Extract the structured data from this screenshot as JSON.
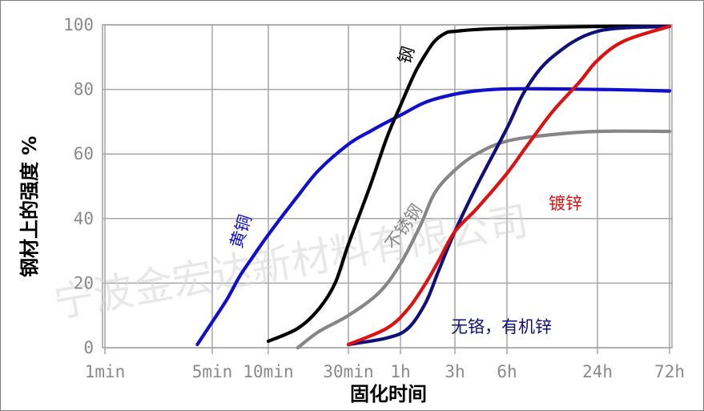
{
  "chart_data": {
    "type": "line",
    "title": "",
    "xlabel": "固化时间",
    "ylabel": "钢材上的强度 %",
    "x_ticks": [
      "1min",
      "5min",
      "10min",
      "30min",
      "1h",
      "3h",
      "6h",
      "24h",
      "72h"
    ],
    "y_ticks": [
      "0",
      "20",
      "40",
      "60",
      "80",
      "100"
    ],
    "ylim": [
      0,
      100
    ],
    "x_scale": "log",
    "grid": true,
    "watermark": "宁波金宏达新材料有限公司",
    "series": [
      {
        "name": "黄铜",
        "color": "#1010cc",
        "points": [
          [
            4,
            1
          ],
          [
            5,
            8
          ],
          [
            6,
            15
          ],
          [
            7,
            22
          ],
          [
            8,
            27
          ],
          [
            10,
            35
          ],
          [
            15,
            47
          ],
          [
            20,
            55
          ],
          [
            30,
            63
          ],
          [
            40,
            67
          ],
          [
            60,
            72
          ],
          [
            120,
            77
          ],
          [
            300,
            80
          ],
          [
            1440,
            80
          ],
          [
            4320,
            79.5
          ]
        ]
      },
      {
        "name": "钢",
        "color": "#000000",
        "points": [
          [
            10,
            2
          ],
          [
            15,
            6
          ],
          [
            20,
            12
          ],
          [
            25,
            20
          ],
          [
            30,
            32
          ],
          [
            40,
            50
          ],
          [
            50,
            65
          ],
          [
            60,
            75
          ],
          [
            80,
            85
          ],
          [
            100,
            91
          ],
          [
            120,
            95
          ],
          [
            150,
            97.5
          ],
          [
            180,
            98
          ],
          [
            300,
            98.8
          ],
          [
            1440,
            99.5
          ],
          [
            4320,
            99.5
          ]
        ]
      },
      {
        "name": "不锈钢",
        "color": "#868686",
        "points": [
          [
            15,
            0
          ],
          [
            20,
            5
          ],
          [
            30,
            10
          ],
          [
            45,
            17
          ],
          [
            60,
            26
          ],
          [
            90,
            38
          ],
          [
            120,
            48
          ],
          [
            180,
            55
          ],
          [
            240,
            60
          ],
          [
            360,
            64
          ],
          [
            720,
            66
          ],
          [
            1440,
            67
          ],
          [
            4320,
            67
          ]
        ]
      },
      {
        "name": "无铬，有机锌",
        "color": "#10107a",
        "points": [
          [
            30,
            1
          ],
          [
            50,
            3
          ],
          [
            70,
            6
          ],
          [
            100,
            14
          ],
          [
            130,
            24
          ],
          [
            180,
            36
          ],
          [
            240,
            50
          ],
          [
            360,
            68
          ],
          [
            480,
            80
          ],
          [
            720,
            90
          ],
          [
            1440,
            98
          ],
          [
            4320,
            99.5
          ]
        ]
      },
      {
        "name": "镀锌",
        "color": "#dd1111",
        "points": [
          [
            30,
            1
          ],
          [
            50,
            6
          ],
          [
            70,
            12
          ],
          [
            100,
            20
          ],
          [
            130,
            27
          ],
          [
            180,
            36
          ],
          [
            240,
            43
          ],
          [
            360,
            54
          ],
          [
            480,
            62
          ],
          [
            720,
            73
          ],
          [
            1080,
            82
          ],
          [
            1440,
            89
          ],
          [
            2160,
            95
          ],
          [
            4320,
            99.5
          ]
        ]
      }
    ]
  }
}
